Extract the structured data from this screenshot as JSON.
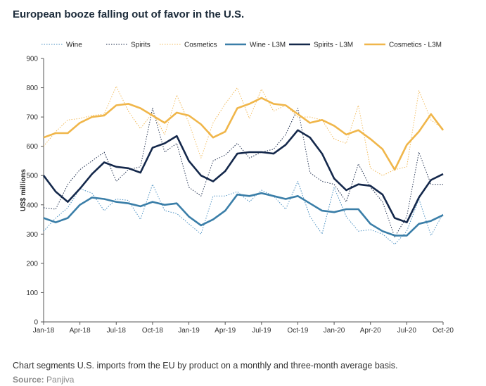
{
  "header": {
    "title": "European booze falling out of favor in the U.S."
  },
  "footer": {
    "caption": "Chart segments U.S. imports from the EU by product on a monthly and three-month average basis.",
    "source_label": "Source:",
    "source_value": "Panjiva"
  },
  "chart_data": {
    "type": "line",
    "title": "European booze falling out of favor in the U.S.",
    "xlabel": "",
    "ylabel": "US$ millions",
    "ylim": [
      0,
      900
    ],
    "yticks": [
      0,
      100,
      200,
      300,
      400,
      500,
      600,
      700,
      800,
      900
    ],
    "grid": false,
    "legend_position": "top",
    "x_tick_labels": [
      "Jan-18",
      "Apr-18",
      "Jul-18",
      "Oct-18",
      "Jan-19",
      "Apr-19",
      "Jul-19",
      "Oct-19",
      "Jan-20",
      "Apr-20",
      "Jul-20",
      "Oct-20"
    ],
    "x_tick_index": [
      0,
      3,
      6,
      9,
      12,
      15,
      18,
      21,
      24,
      27,
      30,
      33
    ],
    "x": [
      "Jan-18",
      "Feb-18",
      "Mar-18",
      "Apr-18",
      "May-18",
      "Jun-18",
      "Jul-18",
      "Aug-18",
      "Sep-18",
      "Oct-18",
      "Nov-18",
      "Dec-18",
      "Jan-19",
      "Feb-19",
      "Mar-19",
      "Apr-19",
      "May-19",
      "Jun-19",
      "Jul-19",
      "Aug-19",
      "Sep-19",
      "Oct-19",
      "Nov-19",
      "Dec-19",
      "Jan-20",
      "Feb-20",
      "Mar-20",
      "Apr-20",
      "May-20",
      "Jun-20",
      "Jul-20",
      "Aug-20",
      "Sep-20",
      "Oct-20"
    ],
    "series": [
      {
        "name": "Wine",
        "style": "dotted",
        "color": "#4a90c2",
        "values": [
          310,
          355,
          390,
          455,
          440,
          380,
          420,
          415,
          350,
          470,
          380,
          370,
          335,
          300,
          430,
          430,
          445,
          410,
          450,
          430,
          385,
          480,
          360,
          300,
          460,
          360,
          310,
          315,
          300,
          265,
          310,
          420,
          295,
          370
        ]
      },
      {
        "name": "Spirits",
        "style": "dotted",
        "color": "#1a2a4a",
        "values": [
          390,
          385,
          470,
          520,
          550,
          580,
          480,
          520,
          530,
          730,
          580,
          610,
          460,
          430,
          550,
          570,
          610,
          560,
          580,
          590,
          640,
          730,
          510,
          480,
          470,
          410,
          540,
          460,
          410,
          290,
          360,
          580,
          470,
          470
        ]
      },
      {
        "name": "Cosmetics",
        "style": "dotted",
        "color": "#f2bb5c",
        "values": [
          600,
          650,
          690,
          695,
          705,
          710,
          805,
          720,
          660,
          715,
          640,
          775,
          680,
          560,
          680,
          745,
          800,
          695,
          795,
          720,
          740,
          700,
          700,
          690,
          625,
          610,
          740,
          525,
          500,
          520,
          530,
          790,
          690,
          660
        ]
      },
      {
        "name": "Wine - L3M",
        "style": "solid",
        "color": "#3a7ea8",
        "values": [
          355,
          340,
          355,
          400,
          425,
          420,
          410,
          405,
          395,
          410,
          400,
          405,
          360,
          330,
          350,
          380,
          435,
          430,
          440,
          430,
          420,
          430,
          405,
          380,
          375,
          385,
          385,
          335,
          310,
          295,
          295,
          335,
          345,
          365
        ]
      },
      {
        "name": "Spirits - L3M",
        "style": "solid",
        "color": "#14284b",
        "values": [
          500,
          445,
          410,
          455,
          505,
          545,
          530,
          525,
          510,
          595,
          610,
          635,
          550,
          500,
          480,
          515,
          575,
          580,
          580,
          575,
          605,
          655,
          630,
          575,
          490,
          450,
          470,
          465,
          435,
          355,
          340,
          425,
          485,
          505
        ]
      },
      {
        "name": "Cosmetics - L3M",
        "style": "solid",
        "color": "#f0b64a",
        "values": [
          630,
          645,
          645,
          680,
          700,
          705,
          740,
          745,
          730,
          705,
          680,
          715,
          705,
          675,
          630,
          650,
          730,
          745,
          765,
          745,
          740,
          710,
          680,
          690,
          670,
          640,
          655,
          625,
          590,
          520,
          605,
          650,
          710,
          655
        ]
      }
    ]
  }
}
